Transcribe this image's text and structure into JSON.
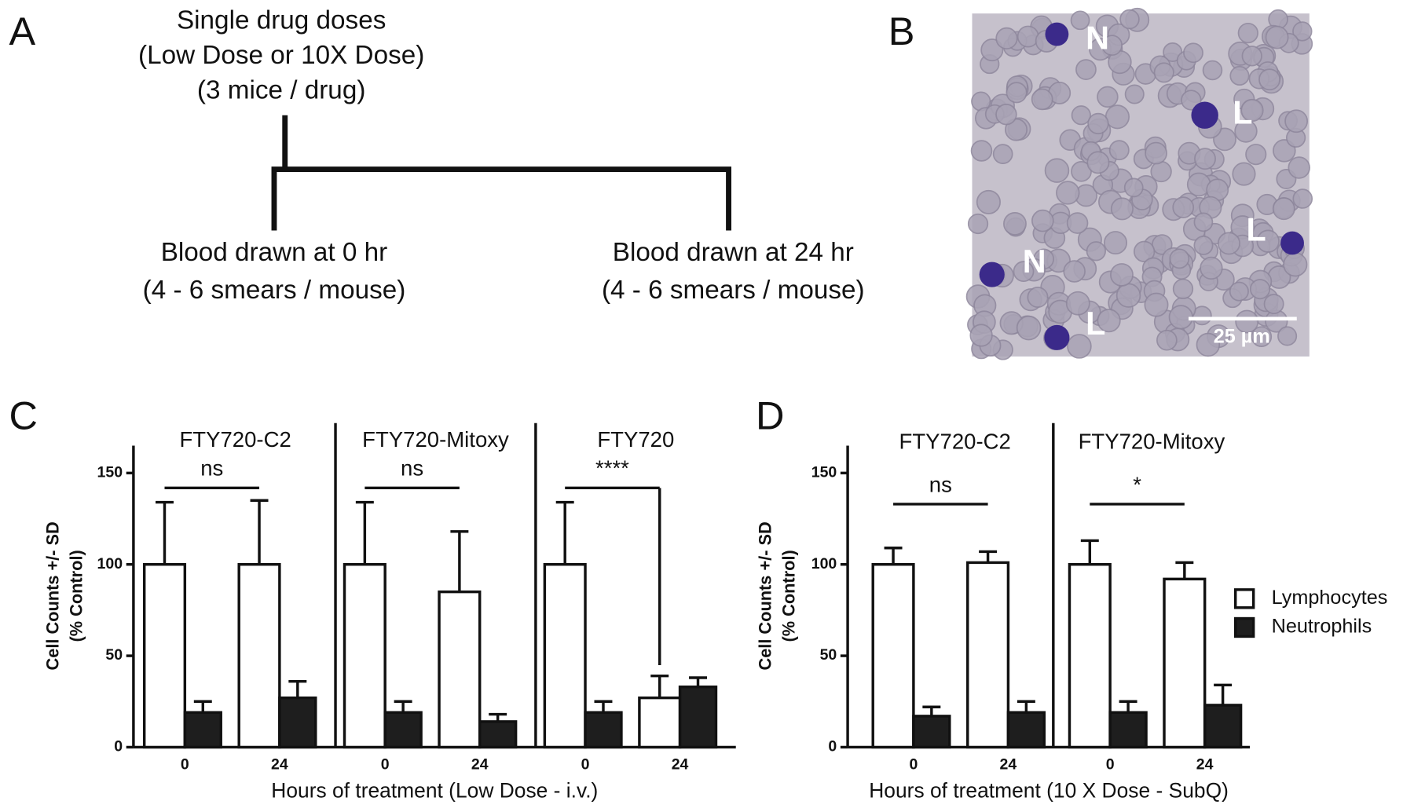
{
  "panel_labels": [
    "A",
    "B",
    "C",
    "D"
  ],
  "diagram": {
    "top": [
      "Single drug doses",
      "(Low Dose or 10X Dose)",
      "(3 mice / drug)"
    ],
    "left": [
      "Blood drawn at 0 hr",
      "(4 - 6 smears / mouse)"
    ],
    "right": [
      "Blood drawn at 24 hr",
      "(4 - 6 smears / mouse)"
    ]
  },
  "micrograph": {
    "labels": [
      "N",
      "L",
      "L",
      "N",
      "L"
    ],
    "scale_bar": "25 µm"
  },
  "chart_data": [
    {
      "type": "bar",
      "ylabel": [
        "Cell Counts +/- SD",
        "(% Control)"
      ],
      "xlabel": "Hours of treatment (Low Dose - i.v.)",
      "ylim": [
        0,
        165
      ],
      "yticks": [
        0,
        50,
        100,
        150
      ],
      "facets": [
        {
          "title": "FTY720-C2",
          "categories": [
            "0",
            "24"
          ],
          "significance": "ns",
          "series": [
            {
              "color": "#ffffff",
              "values": [
                100,
                100
              ],
              "errors": [
                34,
                35
              ]
            },
            {
              "color": "#1e1e1e",
              "values": [
                19,
                27
              ],
              "errors": [
                6,
                9
              ]
            }
          ]
        },
        {
          "title": "FTY720-Mitoxy",
          "categories": [
            "0",
            "24"
          ],
          "significance": "ns",
          "series": [
            {
              "color": "#ffffff",
              "values": [
                100,
                85
              ],
              "errors": [
                34,
                33
              ]
            },
            {
              "color": "#1e1e1e",
              "values": [
                19,
                14
              ],
              "errors": [
                6,
                4
              ]
            }
          ]
        },
        {
          "title": "FTY720",
          "categories": [
            "0",
            "24"
          ],
          "significance": "****",
          "series": [
            {
              "color": "#ffffff",
              "values": [
                100,
                27
              ],
              "errors": [
                34,
                12
              ]
            },
            {
              "color": "#1e1e1e",
              "values": [
                19,
                33
              ],
              "errors": [
                6,
                5
              ]
            }
          ]
        }
      ]
    },
    {
      "type": "bar",
      "ylabel": [
        "Cell Counts +/- SD",
        "(% Control)"
      ],
      "xlabel": "Hours of treatment (10 X Dose - SubQ)",
      "ylim": [
        0,
        165
      ],
      "yticks": [
        0,
        50,
        100,
        150
      ],
      "facets": [
        {
          "title": "FTY720-C2",
          "categories": [
            "0",
            "24"
          ],
          "significance": "ns",
          "series": [
            {
              "color": "#ffffff",
              "values": [
                100,
                101
              ],
              "errors": [
                9,
                6
              ]
            },
            {
              "color": "#1e1e1e",
              "values": [
                17,
                19
              ],
              "errors": [
                5,
                6
              ]
            }
          ]
        },
        {
          "title": "FTY720-Mitoxy",
          "categories": [
            "0",
            "24"
          ],
          "significance": "*",
          "series": [
            {
              "color": "#ffffff",
              "values": [
                100,
                92
              ],
              "errors": [
                13,
                9
              ]
            },
            {
              "color": "#1e1e1e",
              "values": [
                19,
                23
              ],
              "errors": [
                6,
                11
              ]
            }
          ]
        }
      ],
      "legend": [
        {
          "name": "Lymphocytes",
          "color": "#ffffff"
        },
        {
          "name": "Neutrophils",
          "color": "#1e1e1e"
        }
      ]
    }
  ]
}
